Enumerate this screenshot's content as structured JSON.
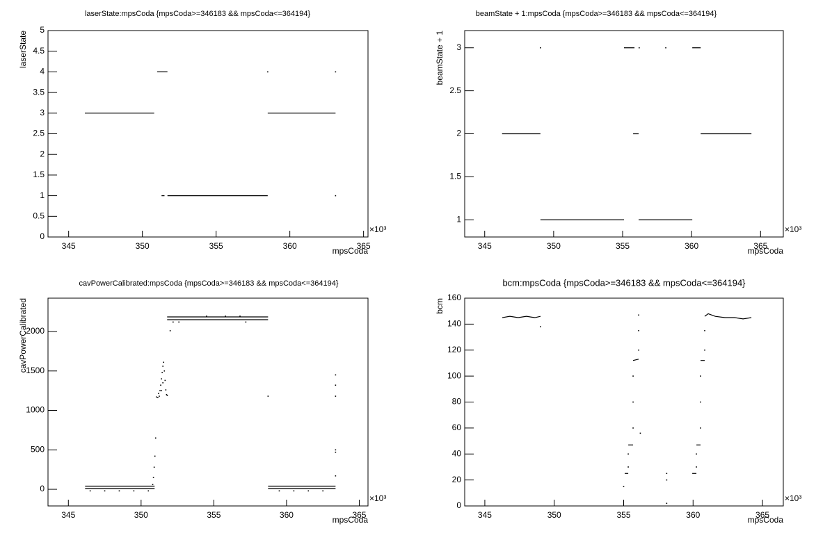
{
  "chart_data": [
    {
      "type": "scatter",
      "title": "laserState:mpsCoda {mpsCoda>=346183 && mpsCoda<=364194}",
      "xlabel": "mpsCoda",
      "ylabel": "laserState",
      "x_multiplier": "×10³",
      "xlim": [
        343.6,
        365.3
      ],
      "ylim": [
        0,
        5
      ],
      "xticks": [
        345,
        350,
        355,
        360,
        365
      ],
      "yticks": [
        0,
        0.5,
        1,
        1.5,
        2,
        2.5,
        3,
        3.5,
        4,
        4.5,
        5
      ],
      "series": [
        {
          "style": "line",
          "color": "#000000",
          "x": [
            346.1,
            350.8,
            null,
            351.0,
            351.7,
            null,
            351.3,
            351.5,
            null,
            351.7,
            358.5,
            null,
            358.5,
            363.1
          ],
          "values": [
            3,
            3,
            null,
            4,
            4,
            null,
            1,
            1,
            null,
            1,
            1,
            null,
            3,
            3
          ]
        },
        {
          "style": "dots",
          "color": "#000000",
          "x": [
            358.5,
            363.1,
            363.1
          ],
          "values": [
            4,
            4,
            1
          ]
        }
      ]
    },
    {
      "type": "scatter",
      "title": "beamState + 1:mpsCoda {mpsCoda>=346183 && mpsCoda<=364194}",
      "xlabel": "mpsCoda",
      "ylabel": "beamState + 1",
      "x_multiplier": "×10³",
      "xlim": [
        343.55,
        366.65
      ],
      "ylim": [
        0.8,
        3.2
      ],
      "xticks": [
        345,
        350,
        355,
        360,
        365
      ],
      "yticks": [
        1,
        1.5,
        2,
        2.5,
        3
      ],
      "series": [
        {
          "style": "line",
          "color": "#000000",
          "x": [
            346.26,
            349.04,
            null,
            349.04,
            355.1,
            null,
            355.1,
            355.86,
            null,
            355.76,
            356.16,
            null,
            356.16,
            360.05,
            null,
            360.05,
            360.66,
            null,
            360.66,
            364.34
          ],
          "values": [
            2,
            2,
            null,
            1,
            1,
            null,
            3,
            3,
            null,
            2,
            2,
            null,
            1,
            1,
            null,
            3,
            3,
            null,
            2,
            2
          ]
        },
        {
          "style": "dots",
          "color": "#000000",
          "x": [
            349.04,
            356.2,
            358.13
          ],
          "values": [
            3,
            3,
            3
          ]
        }
      ]
    },
    {
      "type": "scatter",
      "title": "cavPowerCalibrated:mpsCoda {mpsCoda>=346183 && mpsCoda<=364194}",
      "xlabel": "mpsCoda",
      "ylabel": "cavPowerCalibrated",
      "x_multiplier": "×10³",
      "xlim": [
        343.6,
        365.6
      ],
      "ylim": [
        -211,
        2423
      ],
      "xticks": [
        345,
        350,
        355,
        360,
        365
      ],
      "yticks": [
        0,
        500,
        1000,
        1500,
        2000
      ],
      "series": [
        {
          "style": "line",
          "color": "#000000",
          "x": [
            346.15,
            350.93,
            null,
            346.15,
            350.93,
            null,
            351.79,
            358.73,
            null,
            351.79,
            358.73,
            null,
            358.73,
            363.37,
            null,
            358.73,
            363.37
          ],
          "values": [
            40,
            40,
            null,
            10,
            10,
            null,
            2185,
            2185,
            null,
            2150,
            2150,
            null,
            40,
            40,
            null,
            10,
            10
          ]
        },
        {
          "style": "dots",
          "color": "#000000",
          "x": [
            350.8,
            350.85,
            350.9,
            350.95,
            351.0,
            351.05,
            351.15,
            351.25,
            351.3,
            351.35,
            351.4,
            351.45,
            351.5,
            351.55,
            351.6,
            351.65,
            351.7,
            351.75,
            351.8,
            351.2,
            351.5,
            351.4,
            352.0,
            352.2,
            352.6,
            354.5,
            355.8,
            357.2,
            356.8,
            358.73,
            363.37,
            363.37,
            363.37,
            363.37,
            363.37,
            363.37,
            346.5,
            347.5,
            348.5,
            349.5,
            350.5,
            359.5,
            360.5,
            361.5,
            362.5
          ],
          "values": [
            60,
            150,
            280,
            420,
            650,
            1170,
            1165,
            1180,
            1250,
            1320,
            1400,
            1480,
            1560,
            1610,
            1500,
            1380,
            1260,
            1200,
            1190,
            1215,
            1350,
            1250,
            2010,
            2120,
            2120,
            2195,
            2195,
            2120,
            2195,
            1180,
            1450,
            1320,
            1180,
            500,
            470,
            170,
            -20,
            -20,
            -20,
            -20,
            -20,
            -20,
            -20,
            -20,
            -20
          ]
        }
      ]
    },
    {
      "type": "scatter",
      "title": "bcm:mpsCoda {mpsCoda>=346183 && mpsCoda<=364194}",
      "xlabel": "mpsCoda",
      "ylabel": "bcm",
      "x_multiplier": "×10³",
      "xlim": [
        343.55,
        366.5
      ],
      "ylim": [
        0,
        160
      ],
      "xticks": [
        345,
        350,
        355,
        360,
        365
      ],
      "yticks": [
        0,
        20,
        40,
        60,
        80,
        100,
        120,
        140,
        160
      ],
      "series": [
        {
          "style": "line",
          "color": "#000000",
          "x": [
            346.25,
            346.8,
            347.4,
            348.0,
            348.6,
            349.01,
            null,
            355.08,
            355.33,
            null,
            355.33,
            355.68,
            null,
            355.68,
            356.08,
            null,
            359.94,
            360.24,
            null,
            360.24,
            360.54,
            null,
            360.54,
            360.84,
            null,
            360.84,
            361.09,
            361.6,
            362.3,
            363.0,
            363.6,
            364.2
          ],
          "values": [
            145,
            146,
            145,
            146,
            145,
            146,
            null,
            25,
            25,
            null,
            47,
            47,
            null,
            112,
            113,
            null,
            25,
            25,
            null,
            47,
            47,
            null,
            112,
            112,
            null,
            146,
            148,
            146,
            145,
            145,
            144,
            145
          ]
        },
        {
          "style": "dots",
          "color": "#000000",
          "x": [
            355.33,
            355.33,
            355.68,
            355.68,
            355.68,
            356.08,
            356.08,
            356.08,
            360.24,
            360.24,
            360.54,
            360.54,
            360.54,
            360.84,
            360.84,
            349.01,
            355.0,
            356.2,
            358.1,
            358.1,
            358.1
          ],
          "values": [
            30,
            40,
            60,
            80,
            100,
            120,
            135,
            147,
            30,
            40,
            60,
            80,
            100,
            120,
            135,
            138,
            15,
            56,
            25,
            20,
            2
          ]
        }
      ]
    }
  ]
}
